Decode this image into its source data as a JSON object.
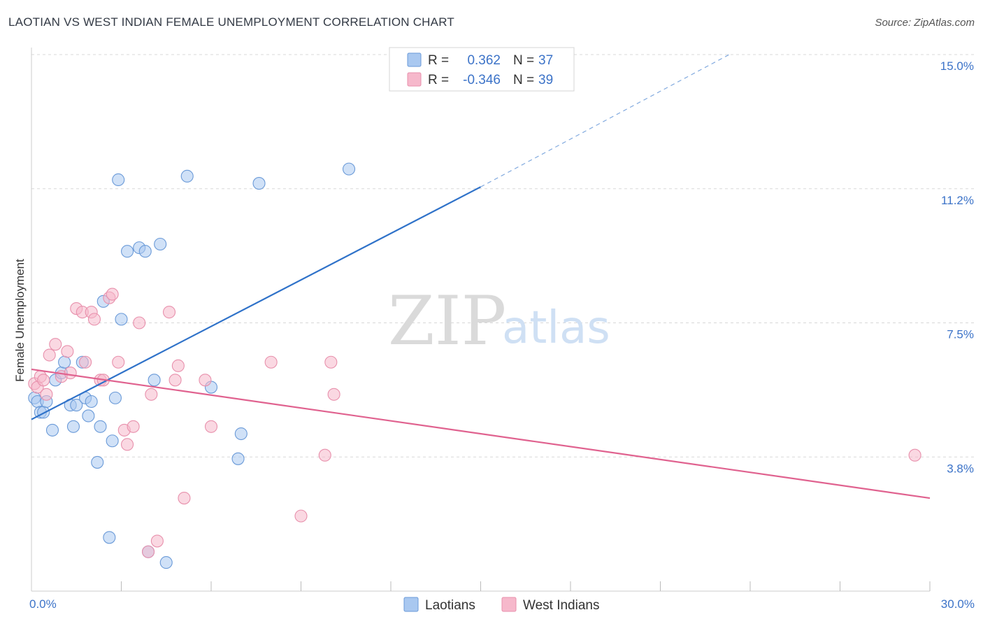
{
  "title": "LAOTIAN VS WEST INDIAN FEMALE UNEMPLOYMENT CORRELATION CHART",
  "source": "Source: ZipAtlas.com",
  "watermark": {
    "zip": "ZIP",
    "atlas": "atlas"
  },
  "colors": {
    "laotians_fill": "#a9c8f0",
    "laotians_stroke": "#6a9ad8",
    "laotians_line": "#2f72c9",
    "west_indians_fill": "#f6b8cb",
    "west_indians_stroke": "#e890ac",
    "west_indians_line": "#e0628f",
    "grid": "#d8d8d8",
    "tick_text": "#3c73c8"
  },
  "legend": {
    "r_label": "R =",
    "n_label": "N =",
    "rows": [
      {
        "r": "0.362",
        "n": "37"
      },
      {
        "r": "-0.346",
        "n": "39"
      }
    ]
  },
  "chart_data": {
    "type": "scatter",
    "xlabel": "",
    "ylabel": "Female Unemployment",
    "xlim": [
      0,
      30
    ],
    "ylim": [
      0,
      15
    ],
    "x_tick_labels": [
      {
        "value": 0,
        "label": "0.0%"
      },
      {
        "value": 30,
        "label": "30.0%"
      }
    ],
    "y_tick_labels": [
      {
        "value": 3.75,
        "label": "3.8%"
      },
      {
        "value": 7.5,
        "label": "7.5%"
      },
      {
        "value": 11.25,
        "label": "11.2%"
      },
      {
        "value": 15,
        "label": "15.0%"
      }
    ],
    "x_minor_ticks": [
      3,
      6,
      9,
      12,
      15,
      18,
      21,
      24,
      27,
      30
    ],
    "grid": true,
    "legend_placement": "top-center",
    "series": [
      {
        "name": "Laotians",
        "points": [
          [
            0.1,
            5.4
          ],
          [
            0.2,
            5.3
          ],
          [
            0.3,
            5.0
          ],
          [
            0.4,
            5.0
          ],
          [
            0.5,
            5.3
          ],
          [
            0.7,
            4.5
          ],
          [
            0.8,
            5.9
          ],
          [
            1.0,
            6.1
          ],
          [
            1.1,
            6.4
          ],
          [
            1.3,
            5.2
          ],
          [
            1.4,
            4.6
          ],
          [
            1.5,
            5.2
          ],
          [
            1.7,
            6.4
          ],
          [
            1.8,
            5.4
          ],
          [
            1.9,
            4.9
          ],
          [
            2.0,
            5.3
          ],
          [
            2.2,
            3.6
          ],
          [
            2.3,
            4.6
          ],
          [
            2.4,
            8.1
          ],
          [
            2.6,
            1.5
          ],
          [
            2.7,
            4.2
          ],
          [
            2.8,
            5.4
          ],
          [
            2.9,
            11.5
          ],
          [
            3.0,
            7.6
          ],
          [
            3.2,
            9.5
          ],
          [
            3.6,
            9.6
          ],
          [
            3.8,
            9.5
          ],
          [
            3.9,
            1.1
          ],
          [
            4.1,
            5.9
          ],
          [
            4.3,
            9.7
          ],
          [
            4.5,
            0.8
          ],
          [
            5.2,
            11.6
          ],
          [
            6.0,
            5.7
          ],
          [
            6.9,
            3.7
          ],
          [
            7.0,
            4.4
          ],
          [
            7.6,
            11.4
          ],
          [
            10.6,
            11.8
          ]
        ],
        "trend": {
          "from": [
            0,
            4.8
          ],
          "to": [
            15,
            11.3
          ],
          "extended_to": [
            23.3,
            15.0
          ]
        }
      },
      {
        "name": "West Indians",
        "points": [
          [
            0.1,
            5.8
          ],
          [
            0.2,
            5.7
          ],
          [
            0.3,
            6.0
          ],
          [
            0.4,
            5.9
          ],
          [
            0.5,
            5.5
          ],
          [
            0.6,
            6.6
          ],
          [
            0.8,
            6.9
          ],
          [
            1.0,
            6.0
          ],
          [
            1.2,
            6.7
          ],
          [
            1.3,
            6.1
          ],
          [
            1.5,
            7.9
          ],
          [
            1.7,
            7.8
          ],
          [
            1.8,
            6.4
          ],
          [
            2.0,
            7.8
          ],
          [
            2.1,
            7.6
          ],
          [
            2.3,
            5.9
          ],
          [
            2.4,
            5.9
          ],
          [
            2.6,
            8.2
          ],
          [
            2.7,
            8.3
          ],
          [
            2.9,
            6.4
          ],
          [
            3.1,
            4.5
          ],
          [
            3.2,
            4.1
          ],
          [
            3.4,
            4.6
          ],
          [
            3.6,
            7.5
          ],
          [
            3.9,
            1.1
          ],
          [
            4.0,
            5.5
          ],
          [
            4.2,
            1.4
          ],
          [
            4.6,
            7.8
          ],
          [
            4.8,
            5.9
          ],
          [
            4.9,
            6.3
          ],
          [
            5.1,
            2.6
          ],
          [
            5.8,
            5.9
          ],
          [
            6.0,
            4.6
          ],
          [
            8.0,
            6.4
          ],
          [
            9.0,
            2.1
          ],
          [
            9.8,
            3.8
          ],
          [
            10.0,
            6.4
          ],
          [
            10.1,
            5.5
          ],
          [
            29.5,
            3.8
          ]
        ],
        "trend": {
          "from": [
            0,
            6.2
          ],
          "to": [
            30,
            2.6
          ]
        }
      }
    ]
  }
}
